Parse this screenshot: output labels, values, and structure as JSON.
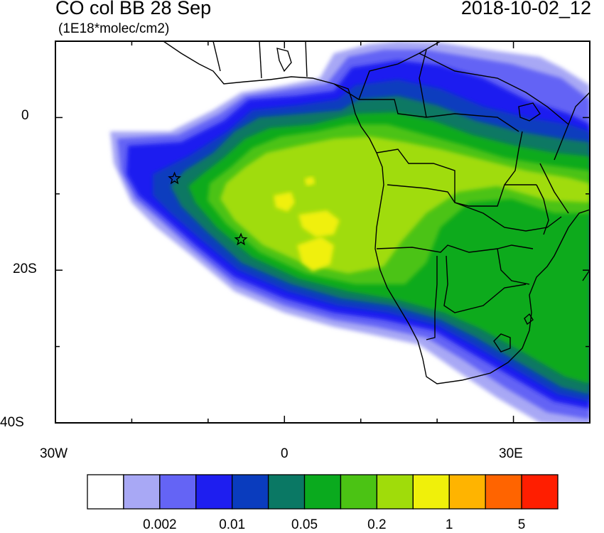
{
  "header": {
    "title": "CO col BB 28 Sep",
    "units": "(1E18*molec/cm2)",
    "datetime": "2018-10-02_12"
  },
  "axes": {
    "y_ticks": [
      {
        "label": "0",
        "lat": 0
      },
      {
        "label": "20S",
        "lat": -20
      },
      {
        "label": "40S",
        "lat": -40
      }
    ],
    "x_ticks": [
      {
        "label": "30W",
        "lon": -30
      },
      {
        "label": "0",
        "lon": 0
      },
      {
        "label": "30E",
        "lon": 30
      }
    ],
    "lon_range": [
      -30,
      40
    ],
    "lat_range": [
      -40,
      10
    ]
  },
  "colorbar": {
    "colors": [
      "#ffffff",
      "#a8a8f5",
      "#6464f5",
      "#1e1ef0",
      "#0a3cbe",
      "#0a7864",
      "#0aaa1e",
      "#4bc314",
      "#a0dc0a",
      "#f0f00a",
      "#ffb400",
      "#ff6400",
      "#ff1e00"
    ],
    "tick_labels": [
      "0.002",
      "0.01",
      "0.05",
      "0.2",
      "1",
      "5"
    ]
  },
  "markers": [
    {
      "name": "star",
      "lon": -14.4,
      "lat": -8
    },
    {
      "name": "star",
      "lon": -5.7,
      "lat": -16
    }
  ]
}
